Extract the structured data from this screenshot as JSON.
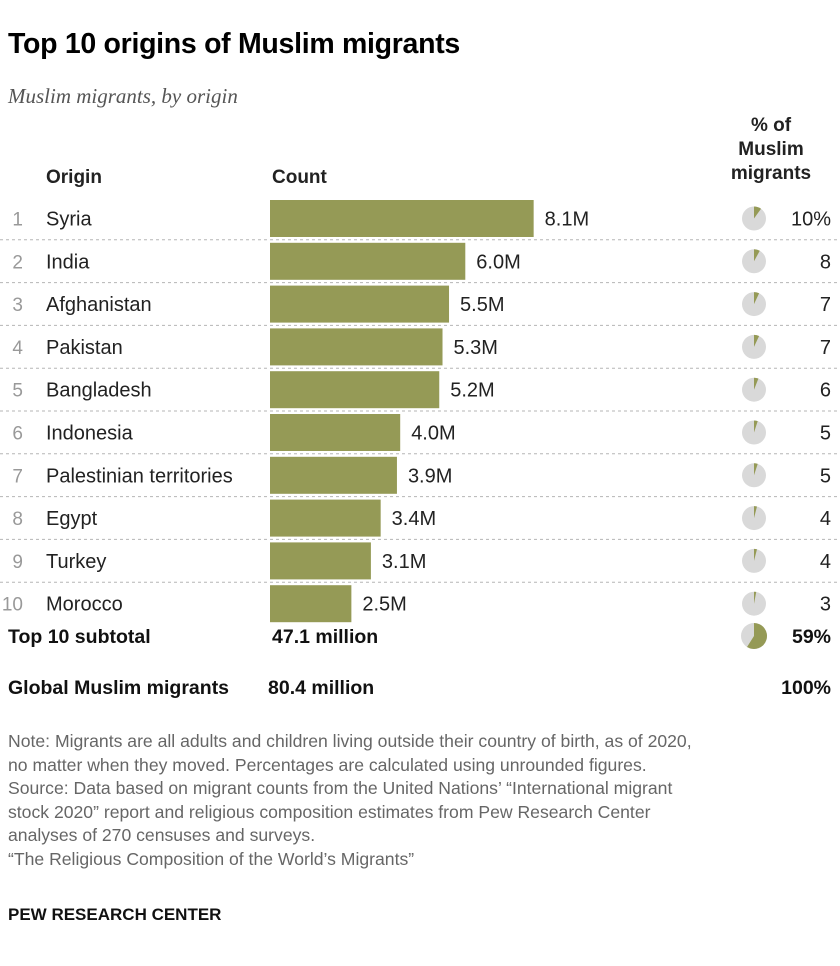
{
  "title": "Top 10 origins of Muslim migrants",
  "subtitle": "Muslim migrants, by origin",
  "headers": {
    "origin": "Origin",
    "count": "Count",
    "share": "% of\nMuslim\nmigrants"
  },
  "colors": {
    "bar": "#959a56",
    "pie_bg": "#d9d9d9",
    "pie_fill": "#959a56",
    "divider": "#b5b5b5",
    "rank": "#999999"
  },
  "chart_data": {
    "type": "bar",
    "orientation": "horizontal",
    "categories": [
      "Syria",
      "India",
      "Afghanistan",
      "Pakistan",
      "Bangladesh",
      "Indonesia",
      "Palestinian territories",
      "Egypt",
      "Turkey",
      "Morocco"
    ],
    "ranks": [
      "1",
      "2",
      "3",
      "4",
      "5",
      "6",
      "7",
      "8",
      "9",
      "10"
    ],
    "series": [
      {
        "values": [
          8.1,
          6.0,
          5.5,
          5.3,
          5.2,
          4.0,
          3.9,
          3.4,
          3.1,
          2.5
        ]
      }
    ],
    "value_labels": [
      "8.1M",
      "6.0M",
      "5.5M",
      "5.3M",
      "5.2M",
      "4.0M",
      "3.9M",
      "3.4M",
      "3.1M",
      "2.5M"
    ],
    "share_values": [
      10,
      8,
      7,
      7,
      6,
      5,
      5,
      4,
      4,
      3
    ],
    "share_labels": [
      "10%",
      "8",
      "7",
      "7",
      "6",
      "5",
      "5",
      "4",
      "4",
      "3"
    ],
    "subtotal": {
      "label": "Top 10 subtotal",
      "count": "47.1 million",
      "share_value": 59,
      "share_label": "59%"
    },
    "global": {
      "label": "Global Muslim migrants",
      "count": "80.4 million",
      "share_label": "100%"
    }
  },
  "notes": [
    "Note: Migrants are all adults and children living outside their country of birth, as of 2020,",
    "no matter when they moved. Percentages are calculated using unrounded figures.",
    "Source: Data based on migrant counts from the United Nations’ “International migrant",
    "stock 2020” report and religious composition estimates from Pew Research Center",
    "analyses of 270 censuses and surveys.",
    "“The Religious Composition of the World’s Migrants”"
  ],
  "brand": "PEW RESEARCH CENTER"
}
